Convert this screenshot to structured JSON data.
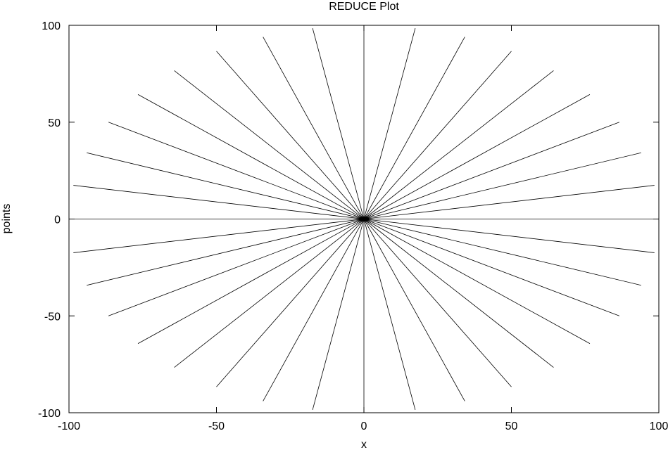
{
  "chart_data": {
    "type": "line",
    "title": "REDUCE Plot",
    "xlabel": "x",
    "ylabel": "points",
    "xlim": [
      -100,
      100
    ],
    "ylim": [
      -100,
      100
    ],
    "x_ticks": [
      -100,
      -50,
      0,
      50,
      100
    ],
    "y_ticks": [
      -100,
      -50,
      0,
      50,
      100
    ],
    "x_tick_labels": [
      "-100",
      "-50",
      "0",
      "50",
      "100"
    ],
    "y_tick_labels": [
      "-100",
      "-50",
      "0",
      "50",
      "100"
    ],
    "grid": false,
    "legend": "none",
    "line_color": "#000000",
    "series": [
      {
        "values": [
          [
            0,
            0
          ],
          [
            0,
            100
          ]
        ]
      },
      {
        "values": [
          [
            0,
            0
          ],
          [
            17.4,
            98.5
          ]
        ]
      },
      {
        "values": [
          [
            0,
            0
          ],
          [
            34.2,
            94.0
          ]
        ]
      },
      {
        "values": [
          [
            0,
            0
          ],
          [
            50.0,
            86.6
          ]
        ]
      },
      {
        "values": [
          [
            0,
            0
          ],
          [
            64.3,
            76.6
          ]
        ]
      },
      {
        "values": [
          [
            0,
            0
          ],
          [
            76.6,
            64.3
          ]
        ]
      },
      {
        "values": [
          [
            0,
            0
          ],
          [
            86.6,
            50.0
          ]
        ]
      },
      {
        "values": [
          [
            0,
            0
          ],
          [
            94.0,
            34.2
          ]
        ]
      },
      {
        "values": [
          [
            0,
            0
          ],
          [
            98.5,
            17.4
          ]
        ]
      },
      {
        "values": [
          [
            0,
            0
          ],
          [
            100,
            0
          ]
        ]
      },
      {
        "values": [
          [
            0,
            0
          ],
          [
            98.5,
            -17.4
          ]
        ]
      },
      {
        "values": [
          [
            0,
            0
          ],
          [
            94.0,
            -34.2
          ]
        ]
      },
      {
        "values": [
          [
            0,
            0
          ],
          [
            86.6,
            -50.0
          ]
        ]
      },
      {
        "values": [
          [
            0,
            0
          ],
          [
            76.6,
            -64.3
          ]
        ]
      },
      {
        "values": [
          [
            0,
            0
          ],
          [
            64.3,
            -76.6
          ]
        ]
      },
      {
        "values": [
          [
            0,
            0
          ],
          [
            50.0,
            -86.6
          ]
        ]
      },
      {
        "values": [
          [
            0,
            0
          ],
          [
            34.2,
            -94.0
          ]
        ]
      },
      {
        "values": [
          [
            0,
            0
          ],
          [
            17.4,
            -98.5
          ]
        ]
      },
      {
        "values": [
          [
            0,
            0
          ],
          [
            0,
            -100
          ]
        ]
      },
      {
        "values": [
          [
            0,
            0
          ],
          [
            -17.4,
            -98.5
          ]
        ]
      },
      {
        "values": [
          [
            0,
            0
          ],
          [
            -34.2,
            -94.0
          ]
        ]
      },
      {
        "values": [
          [
            0,
            0
          ],
          [
            -50.0,
            -86.6
          ]
        ]
      },
      {
        "values": [
          [
            0,
            0
          ],
          [
            -64.3,
            -76.6
          ]
        ]
      },
      {
        "values": [
          [
            0,
            0
          ],
          [
            -76.6,
            -64.3
          ]
        ]
      },
      {
        "values": [
          [
            0,
            0
          ],
          [
            -86.6,
            -50.0
          ]
        ]
      },
      {
        "values": [
          [
            0,
            0
          ],
          [
            -94.0,
            -34.2
          ]
        ]
      },
      {
        "values": [
          [
            0,
            0
          ],
          [
            -98.5,
            -17.4
          ]
        ]
      },
      {
        "values": [
          [
            0,
            0
          ],
          [
            -100,
            0
          ]
        ]
      },
      {
        "values": [
          [
            0,
            0
          ],
          [
            -98.5,
            17.4
          ]
        ]
      },
      {
        "values": [
          [
            0,
            0
          ],
          [
            -94.0,
            34.2
          ]
        ]
      },
      {
        "values": [
          [
            0,
            0
          ],
          [
            -86.6,
            50.0
          ]
        ]
      },
      {
        "values": [
          [
            0,
            0
          ],
          [
            -76.6,
            64.3
          ]
        ]
      },
      {
        "values": [
          [
            0,
            0
          ],
          [
            -64.3,
            76.6
          ]
        ]
      },
      {
        "values": [
          [
            0,
            0
          ],
          [
            -50.0,
            86.6
          ]
        ]
      },
      {
        "values": [
          [
            0,
            0
          ],
          [
            -34.2,
            94.0
          ]
        ]
      },
      {
        "values": [
          [
            0,
            0
          ],
          [
            -17.4,
            98.5
          ]
        ]
      }
    ]
  }
}
